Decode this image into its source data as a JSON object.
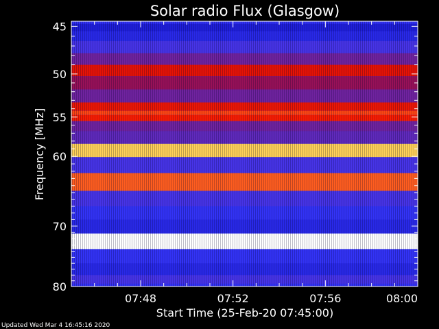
{
  "chart_data": {
    "type": "heatmap",
    "title": "Solar radio Flux (Glasgow)",
    "xlabel": "Start Time (25-Feb-20 07:45:00)",
    "ylabel": "Frequency [MHz]",
    "y_ticks": [
      45,
      50,
      55,
      60,
      70,
      80
    ],
    "y_tick_labels": [
      "45",
      "50",
      "55",
      "60",
      "70",
      "80"
    ],
    "y_scale": "log",
    "ylim": [
      44.5,
      80
    ],
    "x_ticks": [
      "07:48",
      "07:52",
      "07:56",
      "08:00"
    ],
    "x_tick_minutes": [
      3,
      7,
      11,
      15
    ],
    "xlim_minutes": [
      0,
      15
    ],
    "colormap": [
      "#000060",
      "#1818d0",
      "#3a3aff",
      "#c00010",
      "#ff2000",
      "#ffe060",
      "#ffffff"
    ],
    "intensity_bands": [
      {
        "freq": 45.0,
        "level": 0.2
      },
      {
        "freq": 46.0,
        "level": 0.25
      },
      {
        "freq": 47.0,
        "level": 0.35
      },
      {
        "freq": 48.5,
        "level": 0.4
      },
      {
        "freq": 49.5,
        "level": 0.6
      },
      {
        "freq": 51.0,
        "level": 0.45
      },
      {
        "freq": 52.5,
        "level": 0.4
      },
      {
        "freq": 54.0,
        "level": 0.62
      },
      {
        "freq": 54.5,
        "level": 0.7
      },
      {
        "freq": 55.0,
        "level": 0.65
      },
      {
        "freq": 56.0,
        "level": 0.4
      },
      {
        "freq": 57.5,
        "level": 0.38
      },
      {
        "freq": 59.2,
        "level": 0.82
      },
      {
        "freq": 61.0,
        "level": 0.35
      },
      {
        "freq": 63.5,
        "level": 0.72
      },
      {
        "freq": 66.0,
        "level": 0.35
      },
      {
        "freq": 68.0,
        "level": 0.3
      },
      {
        "freq": 70.0,
        "level": 0.25
      },
      {
        "freq": 72.3,
        "level": 1.0
      },
      {
        "freq": 75.0,
        "level": 0.3
      },
      {
        "freq": 77.0,
        "level": 0.25
      },
      {
        "freq": 79.0,
        "level": 0.35
      }
    ]
  },
  "footer": "Updated Wed Mar  4 16:45:16 2020"
}
